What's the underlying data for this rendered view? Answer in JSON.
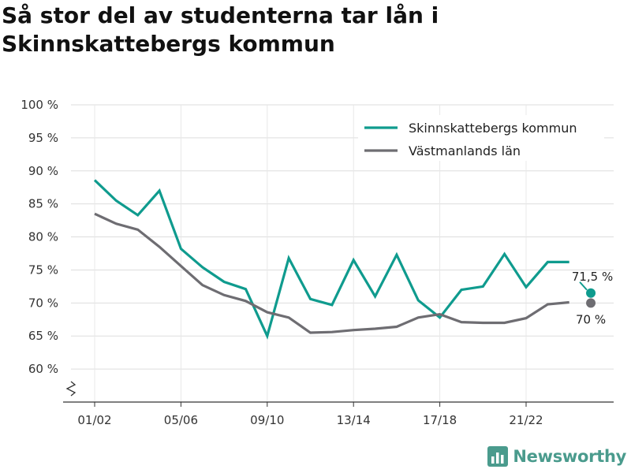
{
  "title": "Så stor del av studenterna tar lån i Skinnskattebergs kommun",
  "brand": {
    "name": "Newsworthy",
    "icon": "bar-chart-logo-icon",
    "color": "#4a9b8d"
  },
  "chart_data": {
    "type": "line",
    "title": "Så stor del av studenterna tar lån i Skinnskattebergs kommun",
    "xlabel": "",
    "ylabel": "",
    "x": [
      "01/02",
      "02/03",
      "03/04",
      "04/05",
      "05/06",
      "06/07",
      "07/08",
      "08/09",
      "09/10",
      "10/11",
      "11/12",
      "12/13",
      "13/14",
      "14/15",
      "15/16",
      "16/17",
      "17/18",
      "18/19",
      "19/20",
      "20/21",
      "21/22",
      "22/23",
      "23/24",
      "24/25"
    ],
    "x_tick_labels": [
      "01/02",
      "05/06",
      "09/10",
      "13/14",
      "17/18",
      "21/22"
    ],
    "y_ticks": [
      60,
      65,
      70,
      75,
      80,
      85,
      90,
      95,
      100
    ],
    "y_tick_labels": [
      "60 %",
      "65 %",
      "70 %",
      "75 %",
      "80 %",
      "85 %",
      "90 %",
      "95 %",
      "100 %"
    ],
    "ylim": [
      55,
      100
    ],
    "y_axis_break": true,
    "grid": true,
    "legend_position": "top-right",
    "series": [
      {
        "name": "Skinnskattebergs kommun",
        "color": "#0f9b8e",
        "values": [
          88.6,
          85.5,
          83.3,
          87.0,
          78.2,
          75.4,
          73.2,
          72.1,
          65.0,
          76.8,
          70.6,
          69.7,
          76.5,
          71.0,
          77.3,
          70.4,
          67.8,
          72.0,
          72.5,
          77.4,
          72.4,
          76.2,
          76.2,
          71.5
        ],
        "end_label": "71,5 %"
      },
      {
        "name": "Västmanlands län",
        "color": "#6e6d72",
        "values": [
          83.5,
          82.0,
          81.1,
          78.5,
          75.6,
          72.7,
          71.2,
          70.3,
          68.6,
          67.8,
          65.5,
          65.6,
          65.9,
          66.1,
          66.4,
          67.8,
          68.3,
          67.1,
          67.0,
          67.0,
          67.7,
          69.8,
          70.1,
          70.0
        ],
        "end_label": "70 %"
      }
    ]
  }
}
